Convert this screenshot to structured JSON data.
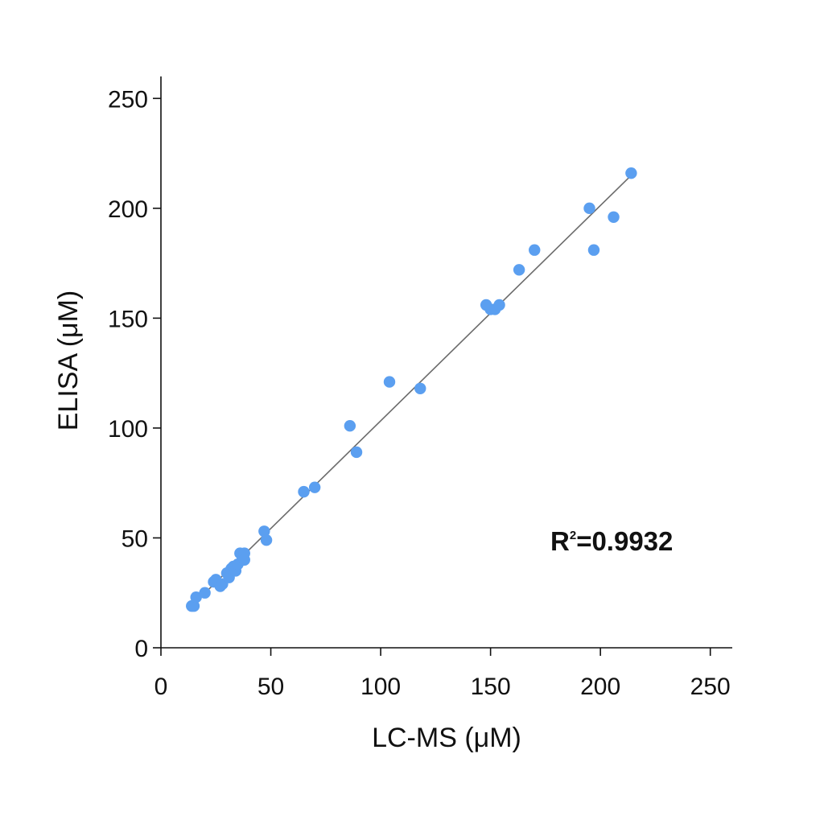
{
  "chart_data": {
    "type": "scatter",
    "title": "",
    "xlabel": "LC-MS (μM)",
    "ylabel": "ELISA (μM)",
    "xlim": [
      0,
      260
    ],
    "ylim": [
      0,
      260
    ],
    "xticks": [
      0,
      50,
      100,
      150,
      200,
      250
    ],
    "yticks": [
      0,
      50,
      100,
      150,
      200,
      250
    ],
    "grid": false,
    "legend": "none",
    "point_color": "#5b9ff0",
    "fit_line_color": "#6b6b6b",
    "annotation": {
      "base": "R",
      "sup": "2",
      "value": "=0.9932"
    },
    "fit_line": {
      "x": [
        14,
        214
      ],
      "y": [
        19,
        215
      ]
    },
    "series": [
      {
        "x": [
          14,
          15,
          16,
          20,
          24,
          25,
          27,
          28,
          30,
          31,
          32,
          33,
          34,
          35,
          36,
          37,
          38,
          38,
          47,
          48,
          65,
          70,
          86,
          89,
          104,
          118,
          148,
          150,
          152,
          154,
          163,
          170,
          195,
          197,
          206,
          214
        ],
        "y": [
          19,
          19,
          23,
          25,
          30,
          31,
          28,
          29,
          34,
          32,
          36,
          37,
          35,
          38,
          43,
          40,
          43,
          40,
          53,
          49,
          71,
          73,
          101,
          89,
          121,
          118,
          156,
          154,
          154,
          156,
          172,
          181,
          200,
          181,
          196,
          216
        ]
      }
    ]
  }
}
